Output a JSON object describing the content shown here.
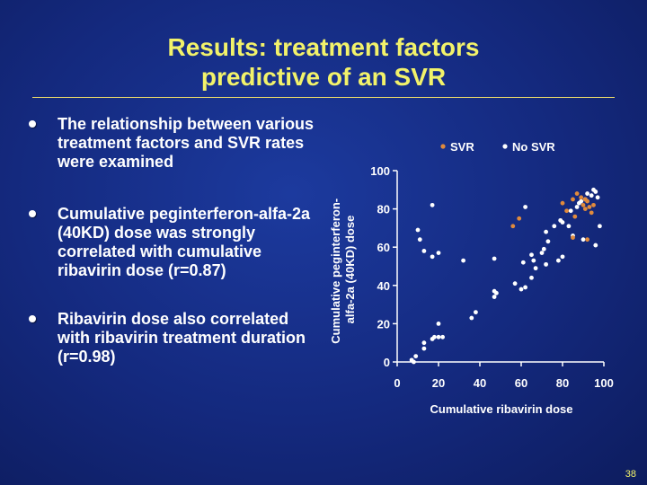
{
  "slide": {
    "title_line1": "Results: treatment factors",
    "title_line2": "predictive of an SVR",
    "bullets": [
      "The relationship between various treatment factors and SVR rates were examined",
      "Cumulative peginterferon-alfa-2a (40KD) dose was strongly correlated with cumulative ribavirin dose (r=0.87)",
      "Ribavirin dose also correlated with ribavirin treatment duration (r=0.98)"
    ],
    "page_number": "38"
  },
  "colors": {
    "background": "#14297e",
    "title": "#f2f26a",
    "svr": "#e08a3c",
    "no_svr": "#ffffff",
    "axis": "#ffffff"
  },
  "chart_data": {
    "type": "scatter",
    "title": "",
    "xlabel": "Cumulative ribavirin dose",
    "ylabel_line1": "Cumulative peginterferon-",
    "ylabel_line2": "alfa-2a (40KD) dose",
    "xlim": [
      0,
      100
    ],
    "ylim": [
      0,
      100
    ],
    "xticks": [
      0,
      20,
      40,
      60,
      80,
      100
    ],
    "yticks": [
      0,
      20,
      40,
      60,
      80,
      100
    ],
    "legend": [
      "SVR",
      "No SVR"
    ],
    "legend_position": "top-right",
    "grid": false,
    "series": [
      {
        "name": "SVR",
        "points": [
          [
            56,
            71
          ],
          [
            59,
            75
          ],
          [
            80,
            83
          ],
          [
            82,
            79
          ],
          [
            85,
            85
          ],
          [
            87,
            88
          ],
          [
            89,
            86
          ],
          [
            90,
            82
          ],
          [
            91,
            80
          ],
          [
            92,
            84
          ],
          [
            93,
            81
          ],
          [
            94,
            78
          ],
          [
            91,
            85
          ],
          [
            95,
            82
          ],
          [
            85,
            65
          ],
          [
            92,
            64
          ],
          [
            86,
            76
          ]
        ]
      },
      {
        "name": "No SVR",
        "points": [
          [
            10,
            69
          ],
          [
            11,
            64
          ],
          [
            13,
            58
          ],
          [
            17,
            55
          ],
          [
            17,
            82
          ],
          [
            20,
            57
          ],
          [
            32,
            53
          ],
          [
            47,
            54
          ],
          [
            62,
            81
          ],
          [
            61,
            52
          ],
          [
            65,
            56
          ],
          [
            66,
            53
          ],
          [
            67,
            49
          ],
          [
            72,
            51
          ],
          [
            70,
            57
          ],
          [
            71,
            59
          ],
          [
            73,
            63
          ],
          [
            72,
            68
          ],
          [
            76,
            71
          ],
          [
            79,
            74
          ],
          [
            80,
            73
          ],
          [
            83,
            71
          ],
          [
            84,
            79
          ],
          [
            87,
            81
          ],
          [
            88,
            83
          ],
          [
            89,
            84
          ],
          [
            91,
            85
          ],
          [
            92,
            88
          ],
          [
            94,
            87
          ],
          [
            95,
            90
          ],
          [
            96,
            89
          ],
          [
            97,
            86
          ],
          [
            85,
            66
          ],
          [
            90,
            64
          ],
          [
            96,
            61
          ],
          [
            98,
            71
          ],
          [
            78,
            53
          ],
          [
            80,
            55
          ],
          [
            65,
            44
          ],
          [
            62,
            39
          ],
          [
            60,
            38
          ],
          [
            57,
            41
          ],
          [
            47,
            37
          ],
          [
            47,
            34
          ],
          [
            48,
            36
          ],
          [
            38,
            26
          ],
          [
            36,
            23
          ],
          [
            20,
            20
          ],
          [
            17,
            12
          ],
          [
            18,
            13
          ],
          [
            20,
            13
          ],
          [
            22,
            13
          ],
          [
            13,
            10
          ],
          [
            13,
            7
          ],
          [
            9,
            3
          ],
          [
            8,
            0
          ],
          [
            7,
            1
          ]
        ]
      }
    ]
  }
}
